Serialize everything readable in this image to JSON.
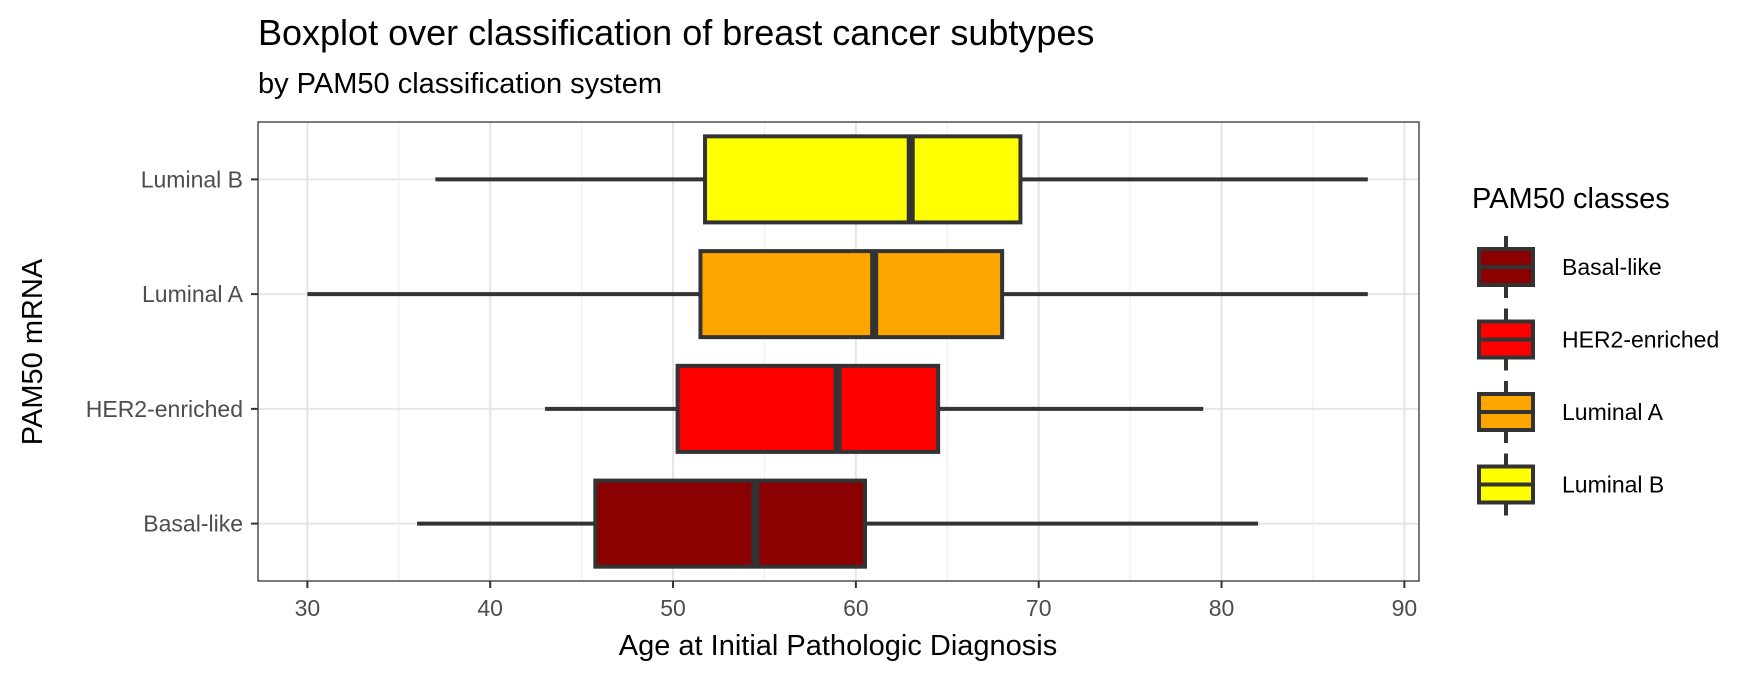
{
  "chart_data": {
    "type": "boxplot",
    "title": "Boxplot over classification of breast cancer subtypes",
    "subtitle": "by PAM50 classification system",
    "xlabel": "Age at Initial Pathologic Diagnosis",
    "ylabel": "PAM50 mRNA",
    "xlim": [
      27.3,
      90.8
    ],
    "x_ticks": [
      30,
      40,
      50,
      60,
      70,
      80,
      90
    ],
    "grid": true,
    "legend": {
      "title": "PAM50 classes",
      "position": "right",
      "items": [
        {
          "label": "Basal-like",
          "color": "#8B0000"
        },
        {
          "label": "HER2-enriched",
          "color": "#FF0000"
        },
        {
          "label": "Luminal A",
          "color": "#FFA500"
        },
        {
          "label": "Luminal B",
          "color": "#FFFF00"
        }
      ]
    },
    "categories": [
      "Basal-like",
      "HER2-enriched",
      "Luminal A",
      "Luminal B"
    ],
    "series": [
      {
        "category": "Basal-like",
        "color": "#8B0000",
        "min": 36,
        "q1": 45.75,
        "median": 54.5,
        "q3": 60.5,
        "max": 82
      },
      {
        "category": "HER2-enriched",
        "color": "#FF0000",
        "min": 43,
        "q1": 50.25,
        "median": 59,
        "q3": 64.5,
        "max": 79
      },
      {
        "category": "Luminal A",
        "color": "#FFA500",
        "min": 30,
        "q1": 51.5,
        "median": 61,
        "q3": 68,
        "max": 88
      },
      {
        "category": "Luminal B",
        "color": "#FFFF00",
        "min": 37,
        "q1": 51.75,
        "median": 63,
        "q3": 69,
        "max": 88
      }
    ]
  }
}
